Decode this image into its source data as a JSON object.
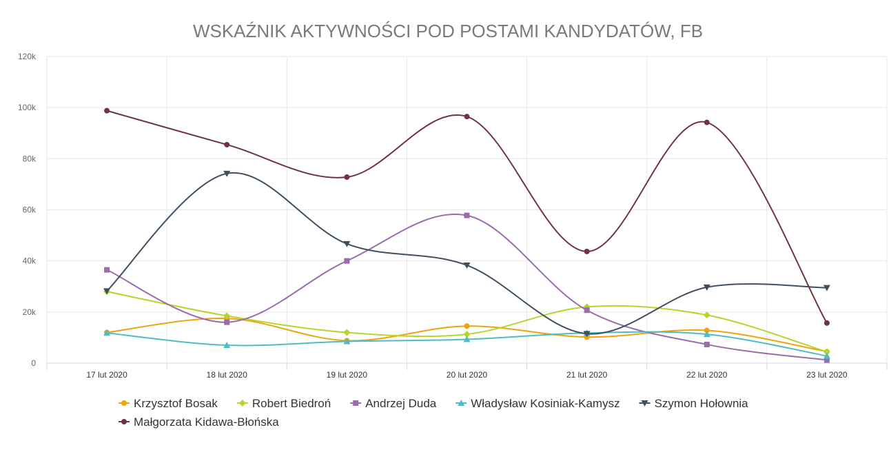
{
  "chart_data": {
    "type": "line",
    "title": "WSKAŹNIK AKTYWNOŚCI POD POSTAMI KANDYDATÓW, FB",
    "xlabel": "",
    "ylabel": "",
    "categories": [
      "17 lut 2020",
      "18 lut 2020",
      "19 lut 2020",
      "20 lut 2020",
      "21 lut 2020",
      "22 lut 2020",
      "23 lut 2020"
    ],
    "ylim": [
      0,
      120000
    ],
    "yticks": [
      0,
      20000,
      40000,
      60000,
      80000,
      100000,
      120000
    ],
    "ytick_labels": [
      "0",
      "20k",
      "40k",
      "60k",
      "80k",
      "100k",
      "120k"
    ],
    "grid": true,
    "legend_position": "bottom",
    "series": [
      {
        "name": "Krzysztof Bosak",
        "color": "#f0a30a",
        "marker": "circle",
        "values": [
          12000,
          17500,
          8800,
          14500,
          10200,
          12800,
          4500
        ]
      },
      {
        "name": "Robert Biedroń",
        "color": "#b5d629",
        "marker": "diamond",
        "values": [
          28000,
          18500,
          12000,
          11300,
          22000,
          18800,
          4400
        ]
      },
      {
        "name": "Andrzej Duda",
        "color": "#9b6bab",
        "marker": "square",
        "values": [
          36500,
          16000,
          40000,
          57800,
          20700,
          7300,
          1200
        ]
      },
      {
        "name": "Władysław Kosiniak-Kamysz",
        "color": "#4dbcc4",
        "marker": "triangle",
        "values": [
          11800,
          7000,
          8500,
          9300,
          11800,
          11300,
          2800
        ]
      },
      {
        "name": "Szymon Hołownia",
        "color": "#3f4f60",
        "marker": "triangle-down",
        "values": [
          28200,
          74200,
          46700,
          38300,
          11500,
          29700,
          29500
        ]
      },
      {
        "name": "Małgorzata Kidawa-Błońska",
        "color": "#6f3440",
        "marker": "circle",
        "values": [
          98800,
          85500,
          72800,
          96500,
          43700,
          94200,
          15700
        ]
      }
    ]
  }
}
